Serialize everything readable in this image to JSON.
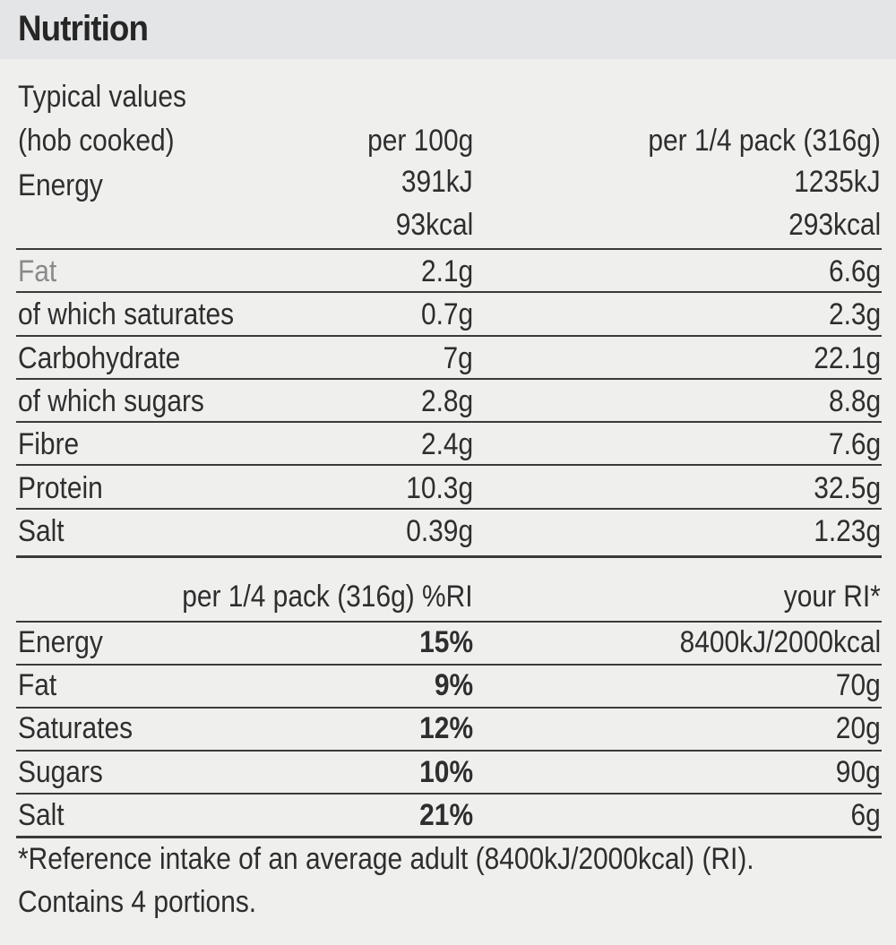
{
  "title": "Nutrition",
  "header": {
    "line1": "Typical values",
    "line2": "(hob cooked)",
    "col_per100": "per 100g",
    "col_perpack": "per 1/4 pack (316g)"
  },
  "energy": {
    "label": "Energy",
    "kj_100": "391kJ",
    "kj_pack": "1235kJ",
    "kcal_100": "93kcal",
    "kcal_pack": "293kcal"
  },
  "rows": [
    {
      "label": "Fat",
      "per100": "2.1g",
      "perpack": "6.6g"
    },
    {
      "label": "of which saturates",
      "per100": "0.7g",
      "perpack": "2.3g"
    },
    {
      "label": "Carbohydrate",
      "per100": "7g",
      "perpack": "22.1g"
    },
    {
      "label": "of which sugars",
      "per100": "2.8g",
      "perpack": "8.8g"
    },
    {
      "label": "Fibre",
      "per100": "2.4g",
      "perpack": "7.6g"
    },
    {
      "label": "Protein",
      "per100": "10.3g",
      "perpack": "32.5g"
    },
    {
      "label": "Salt",
      "per100": "0.39g",
      "perpack": "1.23g"
    }
  ],
  "ri_header": {
    "pct_label": "per 1/4 pack (316g) %RI",
    "your_ri": "your RI*"
  },
  "ri_rows": [
    {
      "label": "Energy",
      "pct": "15%",
      "ri": "8400kJ/2000kcal"
    },
    {
      "label": "Fat",
      "pct": "9%",
      "ri": "70g"
    },
    {
      "label": "Saturates",
      "pct": "12%",
      "ri": "20g"
    },
    {
      "label": "Sugars",
      "pct": "10%",
      "ri": "90g"
    },
    {
      "label": "Salt",
      "pct": "21%",
      "ri": "6g"
    }
  ],
  "footnote": "*Reference intake of an average adult (8400kJ/2000kcal) (RI).",
  "portions": "Contains 4 portions."
}
